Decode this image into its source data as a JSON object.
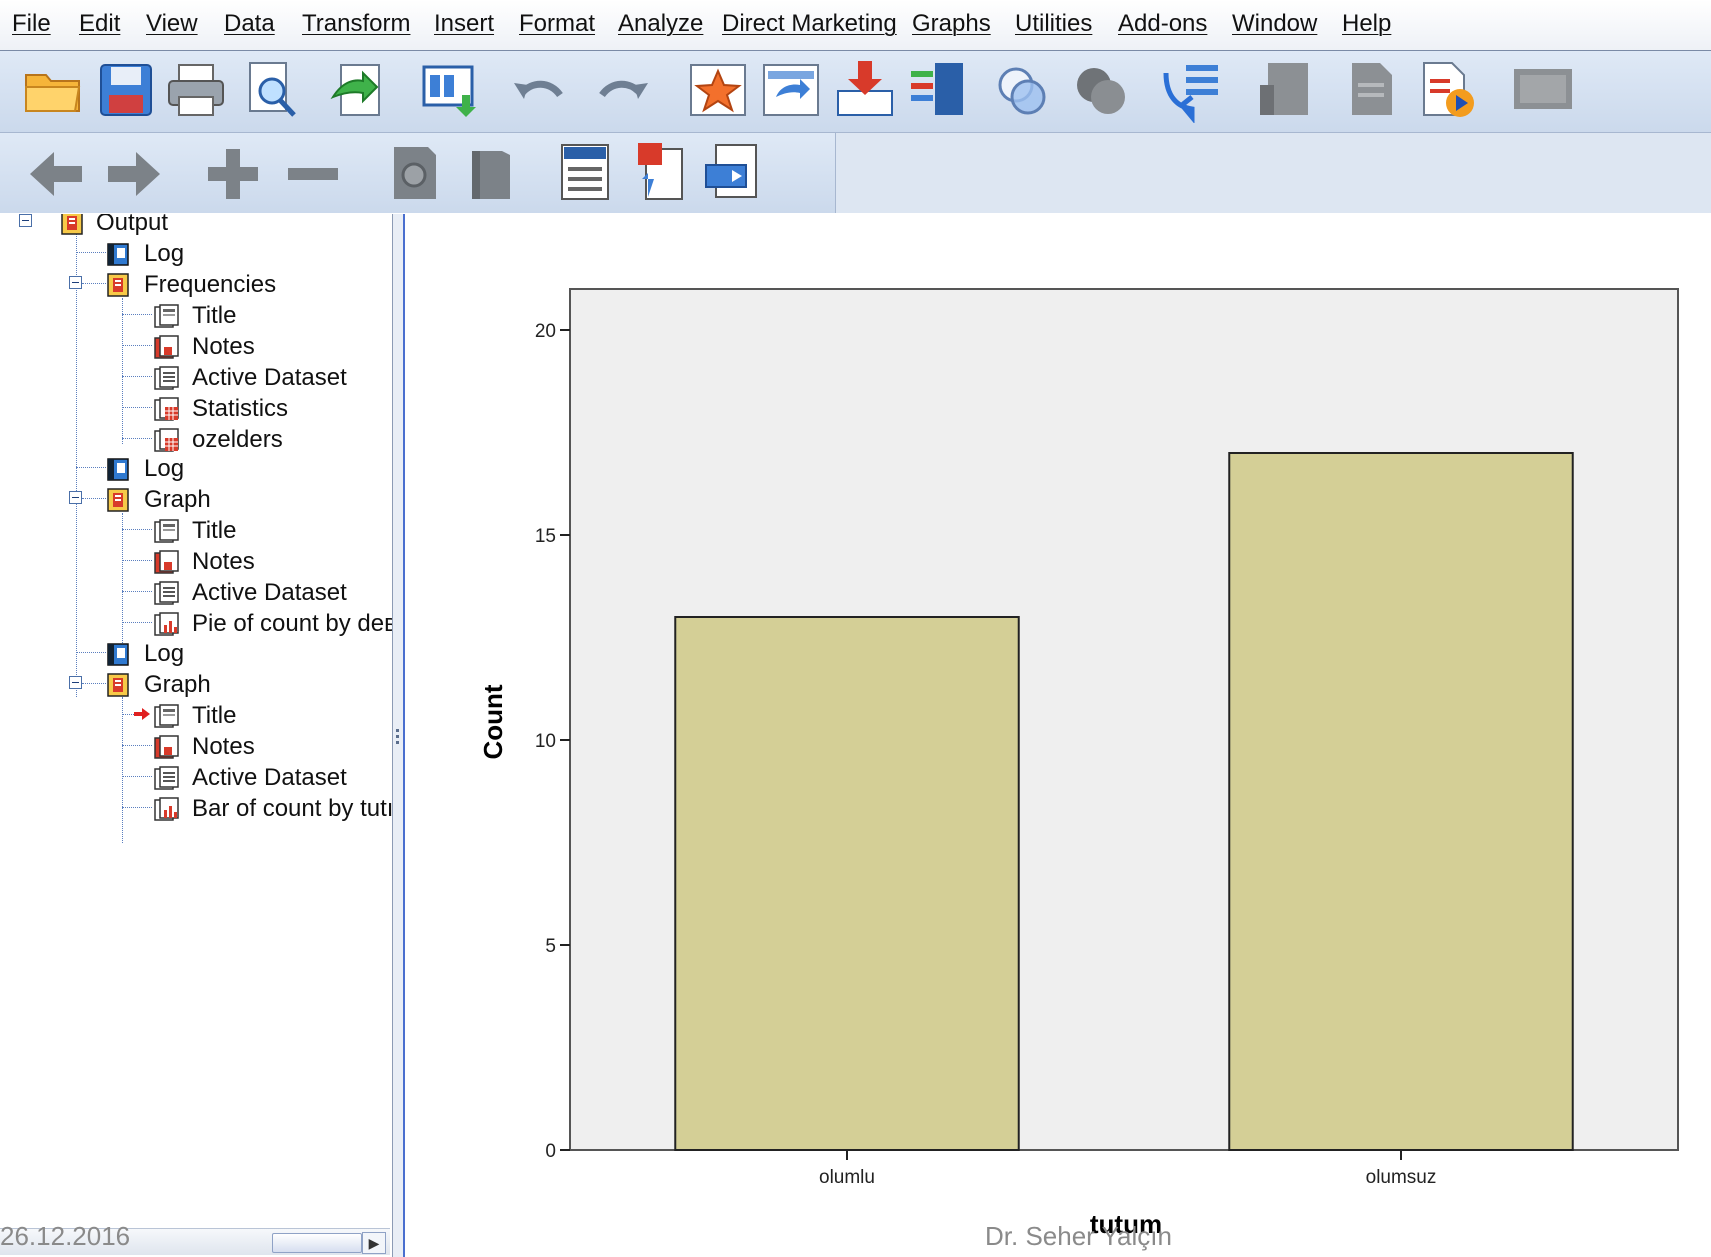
{
  "menu": {
    "items": [
      {
        "label": "File"
      },
      {
        "label": "Edit"
      },
      {
        "label": "View"
      },
      {
        "label": "Data"
      },
      {
        "label": "Transform"
      },
      {
        "label": "Insert"
      },
      {
        "label": "Format"
      },
      {
        "label": "Analyze"
      },
      {
        "label": "Direct Marketing"
      },
      {
        "label": "Graphs"
      },
      {
        "label": "Utilities"
      },
      {
        "label": "Add-ons"
      },
      {
        "label": "Window"
      },
      {
        "label": "Help"
      }
    ]
  },
  "toolbar1": {
    "icons": [
      "open-folder-icon",
      "save-icon",
      "print-icon",
      "print-preview-icon",
      "export-icon",
      "recall-dialog-icon",
      "undo-icon",
      "redo-icon",
      "goto-case-icon",
      "goto-variable-icon",
      "insert-cases-icon",
      "select-cases-icon",
      "value-labels-icon",
      "use-sets-icon",
      "designate-window-icon",
      "show-all-variables-icon",
      "spelling-icon",
      "run-script-icon",
      "script-icon"
    ]
  },
  "toolbar2": {
    "icons": [
      "back-arrow-icon",
      "forward-arrow-icon",
      "expand-plus-icon",
      "collapse-minus-icon",
      "show-icon",
      "hide-icon",
      "insert-heading-icon",
      "insert-title-icon",
      "insert-text-icon"
    ]
  },
  "tree": {
    "nodes": [
      {
        "label": "Output",
        "icon": "output-book-icon"
      },
      {
        "label": "Log",
        "icon": "log-book-icon"
      },
      {
        "label": "Frequencies",
        "icon": "procedure-book-icon"
      },
      {
        "label": "Title",
        "icon": "title-icon"
      },
      {
        "label": "Notes",
        "icon": "notes-icon"
      },
      {
        "label": "Active Dataset",
        "icon": "dataset-icon"
      },
      {
        "label": "Statistics",
        "icon": "table-icon"
      },
      {
        "label": "ozelders",
        "icon": "table-icon"
      },
      {
        "label": "Log",
        "icon": "log-book-icon"
      },
      {
        "label": "Graph",
        "icon": "procedure-book-icon"
      },
      {
        "label": "Title",
        "icon": "title-icon"
      },
      {
        "label": "Notes",
        "icon": "notes-icon"
      },
      {
        "label": "Active Dataset",
        "icon": "dataset-icon"
      },
      {
        "label": "Pie of count by deв",
        "icon": "chart-icon"
      },
      {
        "label": "Log",
        "icon": "log-book-icon"
      },
      {
        "label": "Graph",
        "icon": "procedure-book-icon"
      },
      {
        "label": "Title",
        "icon": "title-icon"
      },
      {
        "label": "Notes",
        "icon": "notes-icon"
      },
      {
        "label": "Active Dataset",
        "icon": "dataset-icon"
      },
      {
        "label": "Bar of count by tutı",
        "icon": "chart-icon"
      }
    ]
  },
  "chart_data": {
    "type": "bar",
    "categories": [
      "olumlu",
      "olumsuz"
    ],
    "values": [
      13,
      17
    ],
    "xlabel": "tutum",
    "ylabel": "Count",
    "ylim": [
      0,
      21
    ],
    "yticks": [
      0,
      5,
      10,
      15,
      20
    ],
    "colors": {
      "bar": "#d4cf96",
      "plot_background": "#efefef",
      "bar_edge": "#222222"
    }
  },
  "footer": {
    "date": "26.12.2016",
    "author": "Dr. Seher Yalçın"
  }
}
